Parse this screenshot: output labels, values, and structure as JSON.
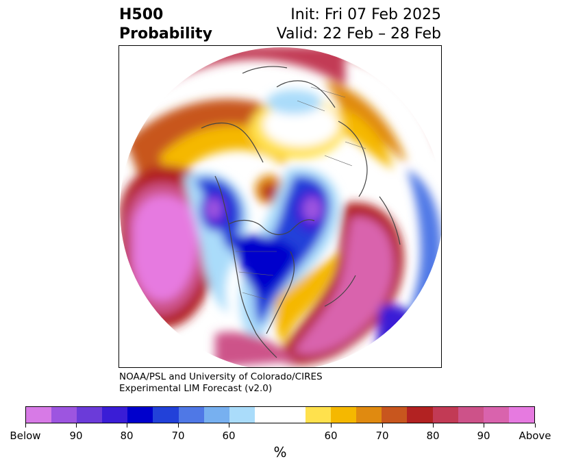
{
  "header": {
    "title_line1": "H500",
    "title_line2": "Probability",
    "init": "Init: Fri 07 Feb 2025",
    "valid": "Valid: 22 Feb – 28 Feb"
  },
  "credit": {
    "line1": "NOAA/PSL and University of Colorado/CIRES",
    "line2": "Experimental LIM Forecast (v2.0)"
  },
  "colorbar": {
    "colors": [
      "#d77ae6",
      "#9d55e0",
      "#6b3bd9",
      "#3a1dd6",
      "#0000cc",
      "#2241d9",
      "#4f78e6",
      "#77b0f0",
      "#aadcfa",
      "#ffffff",
      "#ffffff",
      "#ffe14d",
      "#f5b800",
      "#e08a10",
      "#c8561e",
      "#b22222",
      "#c23a55",
      "#cd5289",
      "#d963ad",
      "#e67ae0"
    ],
    "tick_labels": [
      "Below",
      "90",
      "80",
      "70",
      "60",
      "60",
      "70",
      "80",
      "90",
      "Above"
    ],
    "unit": "%"
  },
  "map": {
    "projection": "north-polar-stereographic",
    "coastline_color": "#444444"
  }
}
